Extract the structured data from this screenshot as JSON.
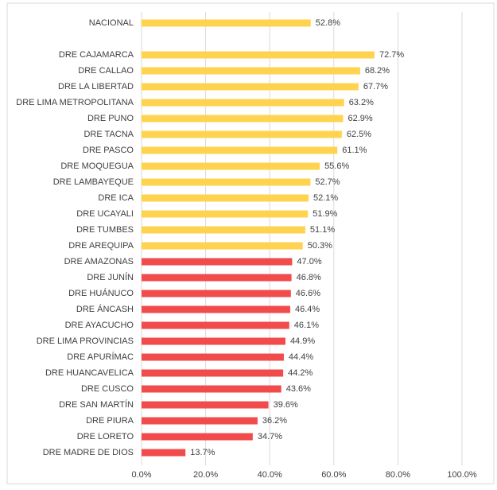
{
  "chart_data": {
    "type": "bar",
    "orientation": "horizontal",
    "categories": [
      "NACIONAL",
      null,
      "DRE CAJAMARCA",
      "DRE CALLAO",
      "DRE LA LIBERTAD",
      "DRE LIMA METROPOLITANA",
      "DRE PUNO",
      "DRE TACNA",
      "DRE PASCO",
      "DRE MOQUEGUA",
      "DRE LAMBAYEQUE",
      "DRE ICA",
      "DRE UCAYALI",
      "DRE TUMBES",
      "DRE AREQUIPA",
      "DRE AMAZONAS",
      "DRE JUNÍN",
      "DRE HUÁNUCO",
      "DRE ÁNCASH",
      "DRE AYACUCHO",
      "DRE LIMA PROVINCIAS",
      "DRE APURÍMAC",
      "DRE HUANCAVELICA",
      "DRE CUSCO",
      "DRE SAN MARTÍN",
      "DRE PIURA",
      "DRE LORETO",
      "DRE MADRE DE DIOS"
    ],
    "values": [
      52.8,
      null,
      72.7,
      68.2,
      67.7,
      63.2,
      62.9,
      62.5,
      61.1,
      55.6,
      52.7,
      52.1,
      51.9,
      51.1,
      50.3,
      47.0,
      46.8,
      46.6,
      46.4,
      46.1,
      44.9,
      44.4,
      44.2,
      43.6,
      39.6,
      36.2,
      34.7,
      13.7
    ],
    "value_labels": [
      "52.8%",
      null,
      "72.7%",
      "68.2%",
      "67.7%",
      "63.2%",
      "62.9%",
      "62.5%",
      "61.1%",
      "55.6%",
      "52.7%",
      "52.1%",
      "51.9%",
      "51.1%",
      "50.3%",
      "47.0%",
      "46.8%",
      "46.6%",
      "46.4%",
      "46.1%",
      "44.9%",
      "44.4%",
      "44.2%",
      "43.6%",
      "39.6%",
      "36.2%",
      "34.7%",
      "13.7%"
    ],
    "colors": [
      "#ffd34f",
      null,
      "#ffd34f",
      "#ffd34f",
      "#ffd34f",
      "#ffd34f",
      "#ffd34f",
      "#ffd34f",
      "#ffd34f",
      "#ffd34f",
      "#ffd34f",
      "#ffd34f",
      "#ffd34f",
      "#ffd34f",
      "#ffd34f",
      "#f24b4b",
      "#f24b4b",
      "#f24b4b",
      "#f24b4b",
      "#f24b4b",
      "#f24b4b",
      "#f24b4b",
      "#f24b4b",
      "#f24b4b",
      "#f24b4b",
      "#f24b4b",
      "#f24b4b",
      "#f24b4b"
    ],
    "xlim": [
      0,
      100
    ],
    "xticks": [
      {
        "value": 0,
        "label": "0.0%"
      },
      {
        "value": 20,
        "label": "20.0%"
      },
      {
        "value": 40,
        "label": "40.0%"
      },
      {
        "value": 60,
        "label": "60.0%"
      },
      {
        "value": 80,
        "label": "80.0%"
      },
      {
        "value": 100,
        "label": "100.0%"
      }
    ],
    "grid": true
  }
}
